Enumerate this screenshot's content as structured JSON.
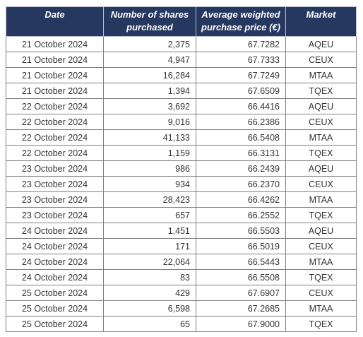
{
  "table": {
    "headers": {
      "date": "Date",
      "shares": "Number of shares purchased",
      "price": "Average weighted purchase price (€)",
      "market": "Market"
    },
    "rows": [
      {
        "date": "21 October 2024",
        "shares": "2,375",
        "price": "67.7282",
        "market": "AQEU"
      },
      {
        "date": "21 October 2024",
        "shares": "4,947",
        "price": "67.7333",
        "market": "CEUX"
      },
      {
        "date": "21 October 2024",
        "shares": "16,284",
        "price": "67.7249",
        "market": "MTAA"
      },
      {
        "date": "21 October 2024",
        "shares": "1,394",
        "price": "67.6509",
        "market": "TQEX"
      },
      {
        "date": "22 October 2024",
        "shares": "3,692",
        "price": "66.4416",
        "market": "AQEU"
      },
      {
        "date": "22 October 2024",
        "shares": "9,016",
        "price": "66.2386",
        "market": "CEUX"
      },
      {
        "date": "22 October 2024",
        "shares": "41,133",
        "price": "66.5408",
        "market": "MTAA"
      },
      {
        "date": "22 October 2024",
        "shares": "1,159",
        "price": "66.3131",
        "market": "TQEX"
      },
      {
        "date": "23 October 2024",
        "shares": "986",
        "price": "66.2439",
        "market": "AQEU"
      },
      {
        "date": "23 October 2024",
        "shares": "934",
        "price": "66.2370",
        "market": "CEUX"
      },
      {
        "date": "23 October 2024",
        "shares": "28,423",
        "price": "66.4262",
        "market": "MTAA"
      },
      {
        "date": "23 October 2024",
        "shares": "657",
        "price": "66.2552",
        "market": "TQEX"
      },
      {
        "date": "24 October 2024",
        "shares": "1,451",
        "price": "66.5503",
        "market": "AQEU"
      },
      {
        "date": "24 October 2024",
        "shares": "171",
        "price": "66.5019",
        "market": "CEUX"
      },
      {
        "date": "24 October 2024",
        "shares": "22,064",
        "price": "66.5443",
        "market": "MTAA"
      },
      {
        "date": "24 October 2024",
        "shares": "83",
        "price": "66.5508",
        "market": "TQEX"
      },
      {
        "date": "25 October 2024",
        "shares": "429",
        "price": "67.6907",
        "market": "CEUX"
      },
      {
        "date": "25 October 2024",
        "shares": "6,598",
        "price": "67.2685",
        "market": "MTAA"
      },
      {
        "date": "25 October 2024",
        "shares": "65",
        "price": "67.9000",
        "market": "TQEX"
      }
    ]
  },
  "colors": {
    "header_background": "#26385f",
    "header_text": "#ffffff"
  }
}
